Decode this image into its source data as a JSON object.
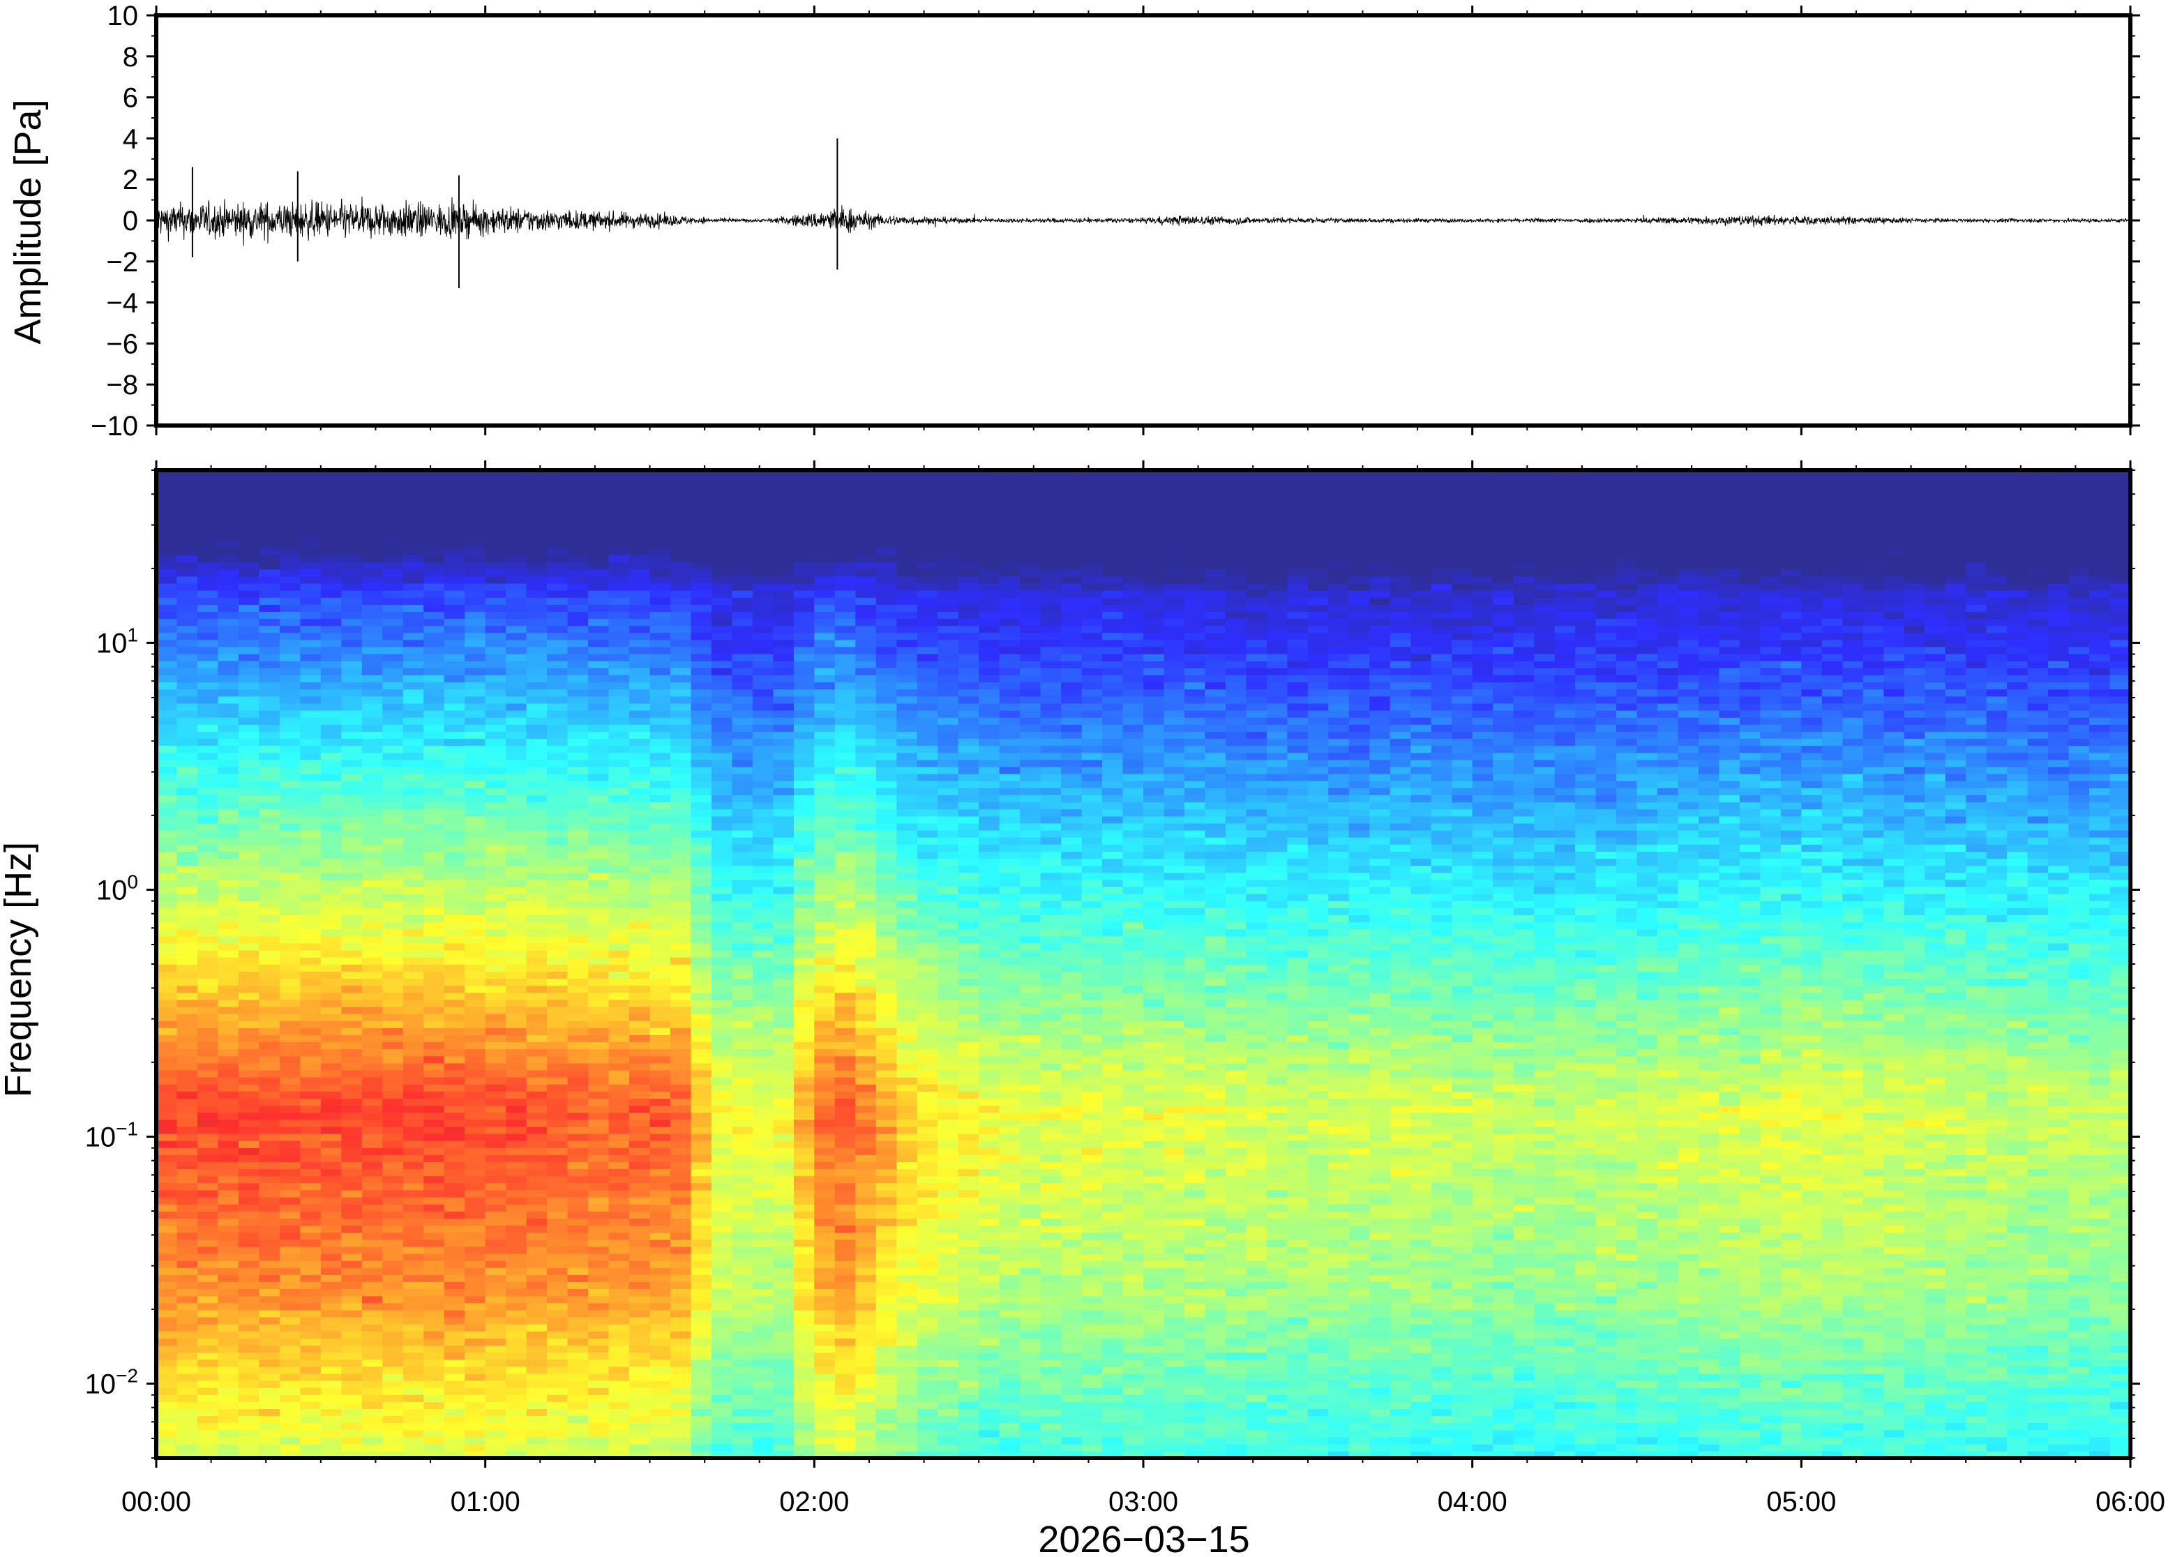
{
  "chart_data": [
    {
      "type": "line",
      "panel": "waveform",
      "ylabel": "Amplitude [Pa]",
      "ylim": [
        -10,
        10
      ],
      "y_ticks": [
        "10",
        "8",
        "6",
        "4",
        "2",
        "0",
        "−2",
        "−4",
        "−6",
        "−8",
        "−10"
      ],
      "y_tick_values": [
        10,
        8,
        6,
        4,
        2,
        0,
        -2,
        -4,
        -6,
        -8,
        -10
      ],
      "x_range_hours": [
        0,
        6
      ],
      "envelope": {
        "hours": [
          0.0,
          0.25,
          0.5,
          0.75,
          1.0,
          1.25,
          1.5,
          1.7,
          1.85,
          2.0,
          2.08,
          2.2,
          2.5,
          3.0,
          3.1,
          3.5,
          4.0,
          4.5,
          4.8,
          5.0,
          5.2,
          5.5,
          5.8,
          6.0
        ],
        "amplitude": [
          1.0,
          1.1,
          1.1,
          1.1,
          0.9,
          0.6,
          0.45,
          0.12,
          0.1,
          0.5,
          0.9,
          0.35,
          0.12,
          0.15,
          0.3,
          0.15,
          0.1,
          0.15,
          0.3,
          0.3,
          0.2,
          0.1,
          0.12,
          0.12
        ]
      },
      "spikes": [
        {
          "hours": 0.92,
          "min": -3.3,
          "max": 2.2
        },
        {
          "hours": 0.11,
          "min": -1.8,
          "max": 2.6
        },
        {
          "hours": 0.43,
          "min": -2.0,
          "max": 2.4
        },
        {
          "hours": 2.07,
          "min": -2.4,
          "max": 4.0
        }
      ]
    },
    {
      "type": "heatmap",
      "panel": "spectrogram",
      "ylabel": "Frequency [Hz]",
      "y_scale": "log",
      "ylim": [
        0.005,
        50
      ],
      "y_ticks": [
        {
          "base": "10",
          "exp": "1",
          "value": 10
        },
        {
          "base": "10",
          "exp": "0",
          "value": 1
        },
        {
          "base": "10",
          "exp": "−1",
          "value": 0.1
        },
        {
          "base": "10",
          "exp": "−2",
          "value": 0.01
        }
      ],
      "colormap": "jet",
      "time_activity": {
        "hours": [
          0.0,
          1.0,
          1.6,
          1.7,
          1.9,
          2.0,
          2.1,
          2.3,
          2.6,
          3.0,
          3.4,
          3.8,
          4.2,
          4.6,
          5.0,
          5.4,
          5.8,
          6.0
        ],
        "level": [
          1.0,
          1.0,
          0.92,
          0.5,
          0.45,
          0.85,
          0.95,
          0.6,
          0.45,
          0.45,
          0.4,
          0.4,
          0.35,
          0.4,
          0.45,
          0.4,
          0.35,
          0.35
        ]
      }
    }
  ],
  "x_axis": {
    "tick_labels": [
      "00:00",
      "01:00",
      "02:00",
      "03:00",
      "04:00",
      "05:00",
      "06:00"
    ],
    "tick_hours": [
      0,
      1,
      2,
      3,
      4,
      5,
      6
    ],
    "date_label": "2026−03−15"
  }
}
